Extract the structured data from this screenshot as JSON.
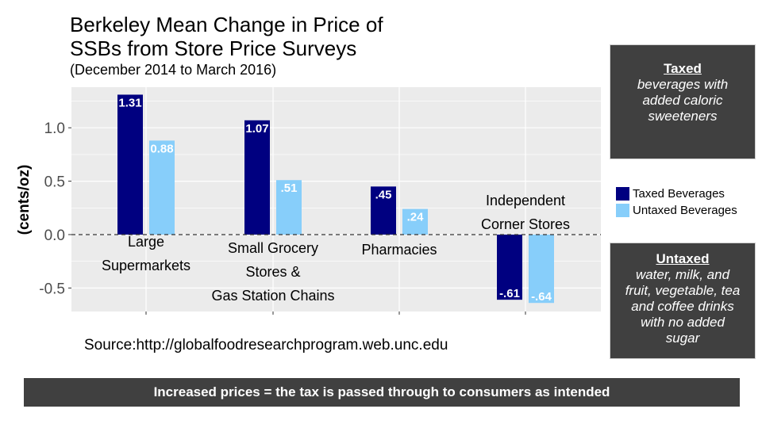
{
  "chart_data": {
    "type": "bar",
    "title_lines": [
      "Berkeley Mean Change in Price of",
      "SSBs from Store Price Surveys"
    ],
    "subtitle": "(December 2014 to March 2016)",
    "xlabel": "",
    "ylabel": "(cents/oz)",
    "ylim": [
      -0.72,
      1.38
    ],
    "yticks": [
      1.0,
      0.5,
      0.0,
      -0.5
    ],
    "ytick_labels": [
      "1.0",
      "0.5",
      "0.0",
      "-0.5"
    ],
    "categories": [
      [
        "Large",
        "Supermarkets"
      ],
      [
        "Small Grocery",
        "Stores &",
        "Gas Station Chains"
      ],
      [
        "Pharmacies"
      ],
      [
        "Independent",
        "Corner Stores"
      ]
    ],
    "series": [
      {
        "name": "Taxed Beverages",
        "color": "#000080",
        "values": [
          1.31,
          1.07,
          0.45,
          -0.61
        ],
        "labels": [
          "1.31",
          "1.07",
          ".45",
          "-.61"
        ]
      },
      {
        "name": "Untaxed Beverages",
        "color": "#87CEFA",
        "values": [
          0.88,
          0.51,
          0.24,
          -0.64
        ],
        "labels": [
          "0.88",
          ".51",
          ".24",
          "-.64"
        ]
      }
    ],
    "reference_line": {
      "y": 0,
      "style": "dashed"
    },
    "grid": true,
    "legend_position": "right"
  },
  "taxed_box": {
    "heading": "Taxed",
    "lines": [
      "beverages with",
      "added caloric",
      "sweeteners"
    ]
  },
  "untaxed_box": {
    "heading": "Untaxed",
    "lines": [
      "water, milk, and",
      "fruit, vegetable, tea",
      "and coffee drinks",
      "with no added",
      "sugar"
    ]
  },
  "source": "Source:http://globalfoodresearchprogram.web.unc.edu",
  "banner": "Increased prices = the tax is passed through to consumers as intended",
  "colors": {
    "panel_bg": "#EBEBEB",
    "taxed": "#000080",
    "untaxed": "#87CEFA",
    "box_bg": "#404040"
  }
}
